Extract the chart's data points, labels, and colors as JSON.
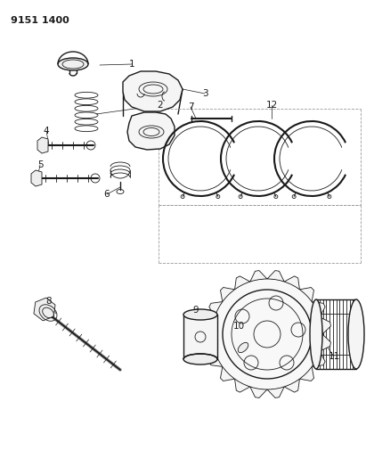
{
  "title_code": "9151 1400",
  "bg_color": "#ffffff",
  "line_color": "#1a1a1a",
  "figsize": [
    4.11,
    5.33
  ],
  "dpi": 100
}
